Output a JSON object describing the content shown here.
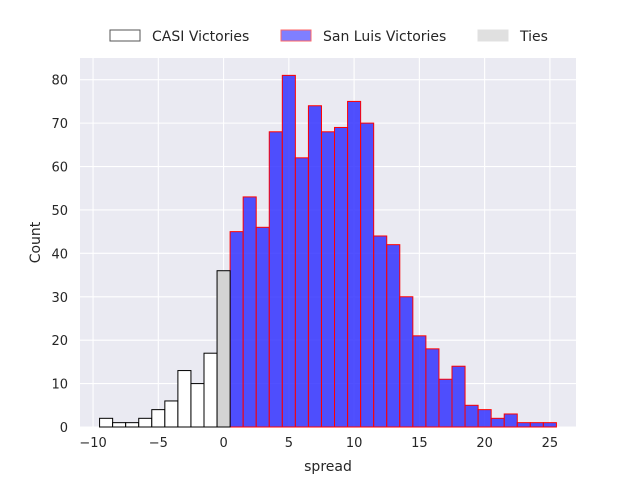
{
  "chart_data": {
    "type": "bar",
    "xlabel": "spread",
    "ylabel": "Count",
    "xlim": [
      -11,
      27
    ],
    "ylim": [
      0,
      85
    ],
    "xticks": [
      -10,
      -5,
      0,
      5,
      10,
      15,
      20,
      25
    ],
    "yticks": [
      0,
      10,
      20,
      30,
      40,
      50,
      60,
      70,
      80
    ],
    "bin_width": 1,
    "grid": true,
    "legend_position": "top-center",
    "colors": {
      "background": "#eaeaf2",
      "grid": "#ffffff",
      "casi_fill": "#ffffff",
      "casi_edge": "#000000",
      "san_luis_fill": "#3333ff",
      "san_luis_edge": "#ff0000",
      "ties_fill": "#d3d3d3",
      "ties_edge": "#000000"
    },
    "series": [
      {
        "name": "CASI Victories",
        "bin_starts": [
          -9.5,
          -8.5,
          -7.5,
          -6.5,
          -5.5,
          -4.5,
          -3.5,
          -2.5,
          -1.5
        ],
        "values": [
          2,
          1,
          1,
          2,
          4,
          6,
          13,
          10,
          17
        ]
      },
      {
        "name": "San Luis Victories",
        "bin_starts": [
          0.5,
          1.5,
          2.5,
          3.5,
          4.5,
          5.5,
          6.5,
          7.5,
          8.5,
          9.5,
          10.5,
          11.5,
          12.5,
          13.5,
          14.5,
          15.5,
          16.5,
          17.5,
          18.5,
          19.5,
          20.5,
          21.5,
          22.5,
          23.5,
          24.5
        ],
        "values": [
          45,
          53,
          46,
          68,
          81,
          62,
          74,
          68,
          69,
          75,
          70,
          44,
          42,
          30,
          21,
          18,
          11,
          14,
          5,
          4,
          2,
          3,
          1,
          1,
          1
        ]
      },
      {
        "name": "Ties",
        "bin_starts": [
          -0.5
        ],
        "values": [
          36
        ]
      }
    ]
  }
}
